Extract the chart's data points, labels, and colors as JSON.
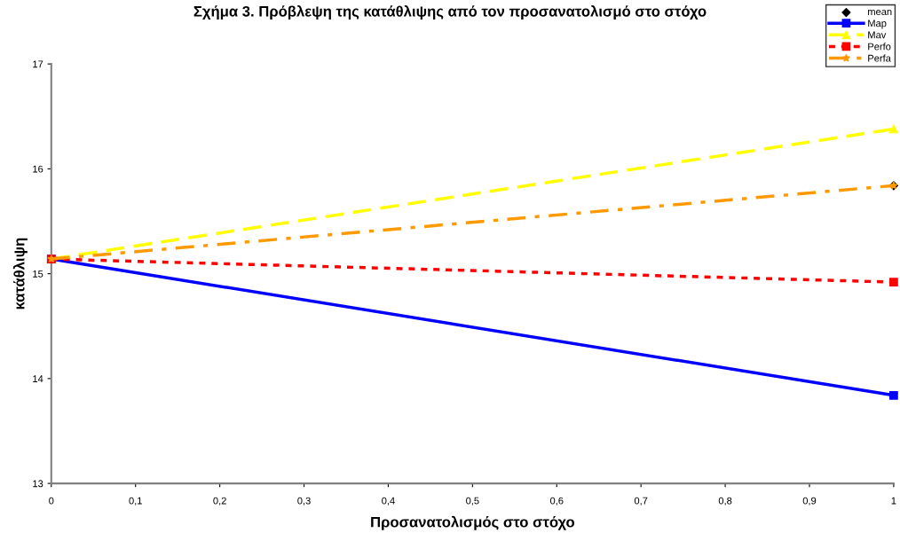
{
  "chart_data": {
    "type": "line",
    "title": "Σχήμα 3. Πρόβλεψη της κατάθλιψης από τον προσανατολισμό στο στόχο",
    "xlabel": "Προσανατολισμός στο στόχο",
    "ylabel": "κατάθλιψη",
    "x": [
      0,
      1
    ],
    "series": [
      {
        "name": "mean",
        "type": "scatter",
        "color": "#000000",
        "marker": "diamond",
        "values": [
          null,
          15.84
        ]
      },
      {
        "name": "Map",
        "color": "#0000ff",
        "marker": "square",
        "line_style": "solid",
        "values": [
          15.14,
          13.84
        ]
      },
      {
        "name": "Mav",
        "color": "#ffff00",
        "marker": "triangle",
        "line_style": "dashed",
        "values": [
          15.14,
          16.38
        ]
      },
      {
        "name": "Perfo",
        "color": "#ff0000",
        "marker": "square",
        "line_style": "dotted",
        "values": [
          15.14,
          14.92
        ]
      },
      {
        "name": "Perfa",
        "color": "#ff9900",
        "marker": "star",
        "line_style": "dashdot",
        "values": [
          15.14,
          15.84
        ]
      }
    ],
    "xlim": [
      0,
      1
    ],
    "ylim": [
      13,
      17
    ],
    "xticks": [
      0,
      {
        "value": 0.1,
        "label": "0,1"
      },
      {
        "value": 0.2,
        "label": "0,2"
      },
      {
        "value": 0.3,
        "label": "0,3"
      },
      {
        "value": 0.4,
        "label": "0,4"
      },
      {
        "value": 0.5,
        "label": "0,5"
      },
      {
        "value": 0.6,
        "label": "0,6"
      },
      {
        "value": 0.7,
        "label": "0,7"
      },
      {
        "value": 0.8,
        "label": "0,8"
      },
      {
        "value": 0.9,
        "label": "0,9"
      },
      1
    ],
    "yticks": [
      13,
      14,
      15,
      16,
      17
    ],
    "grid": false,
    "legend": "top right"
  }
}
